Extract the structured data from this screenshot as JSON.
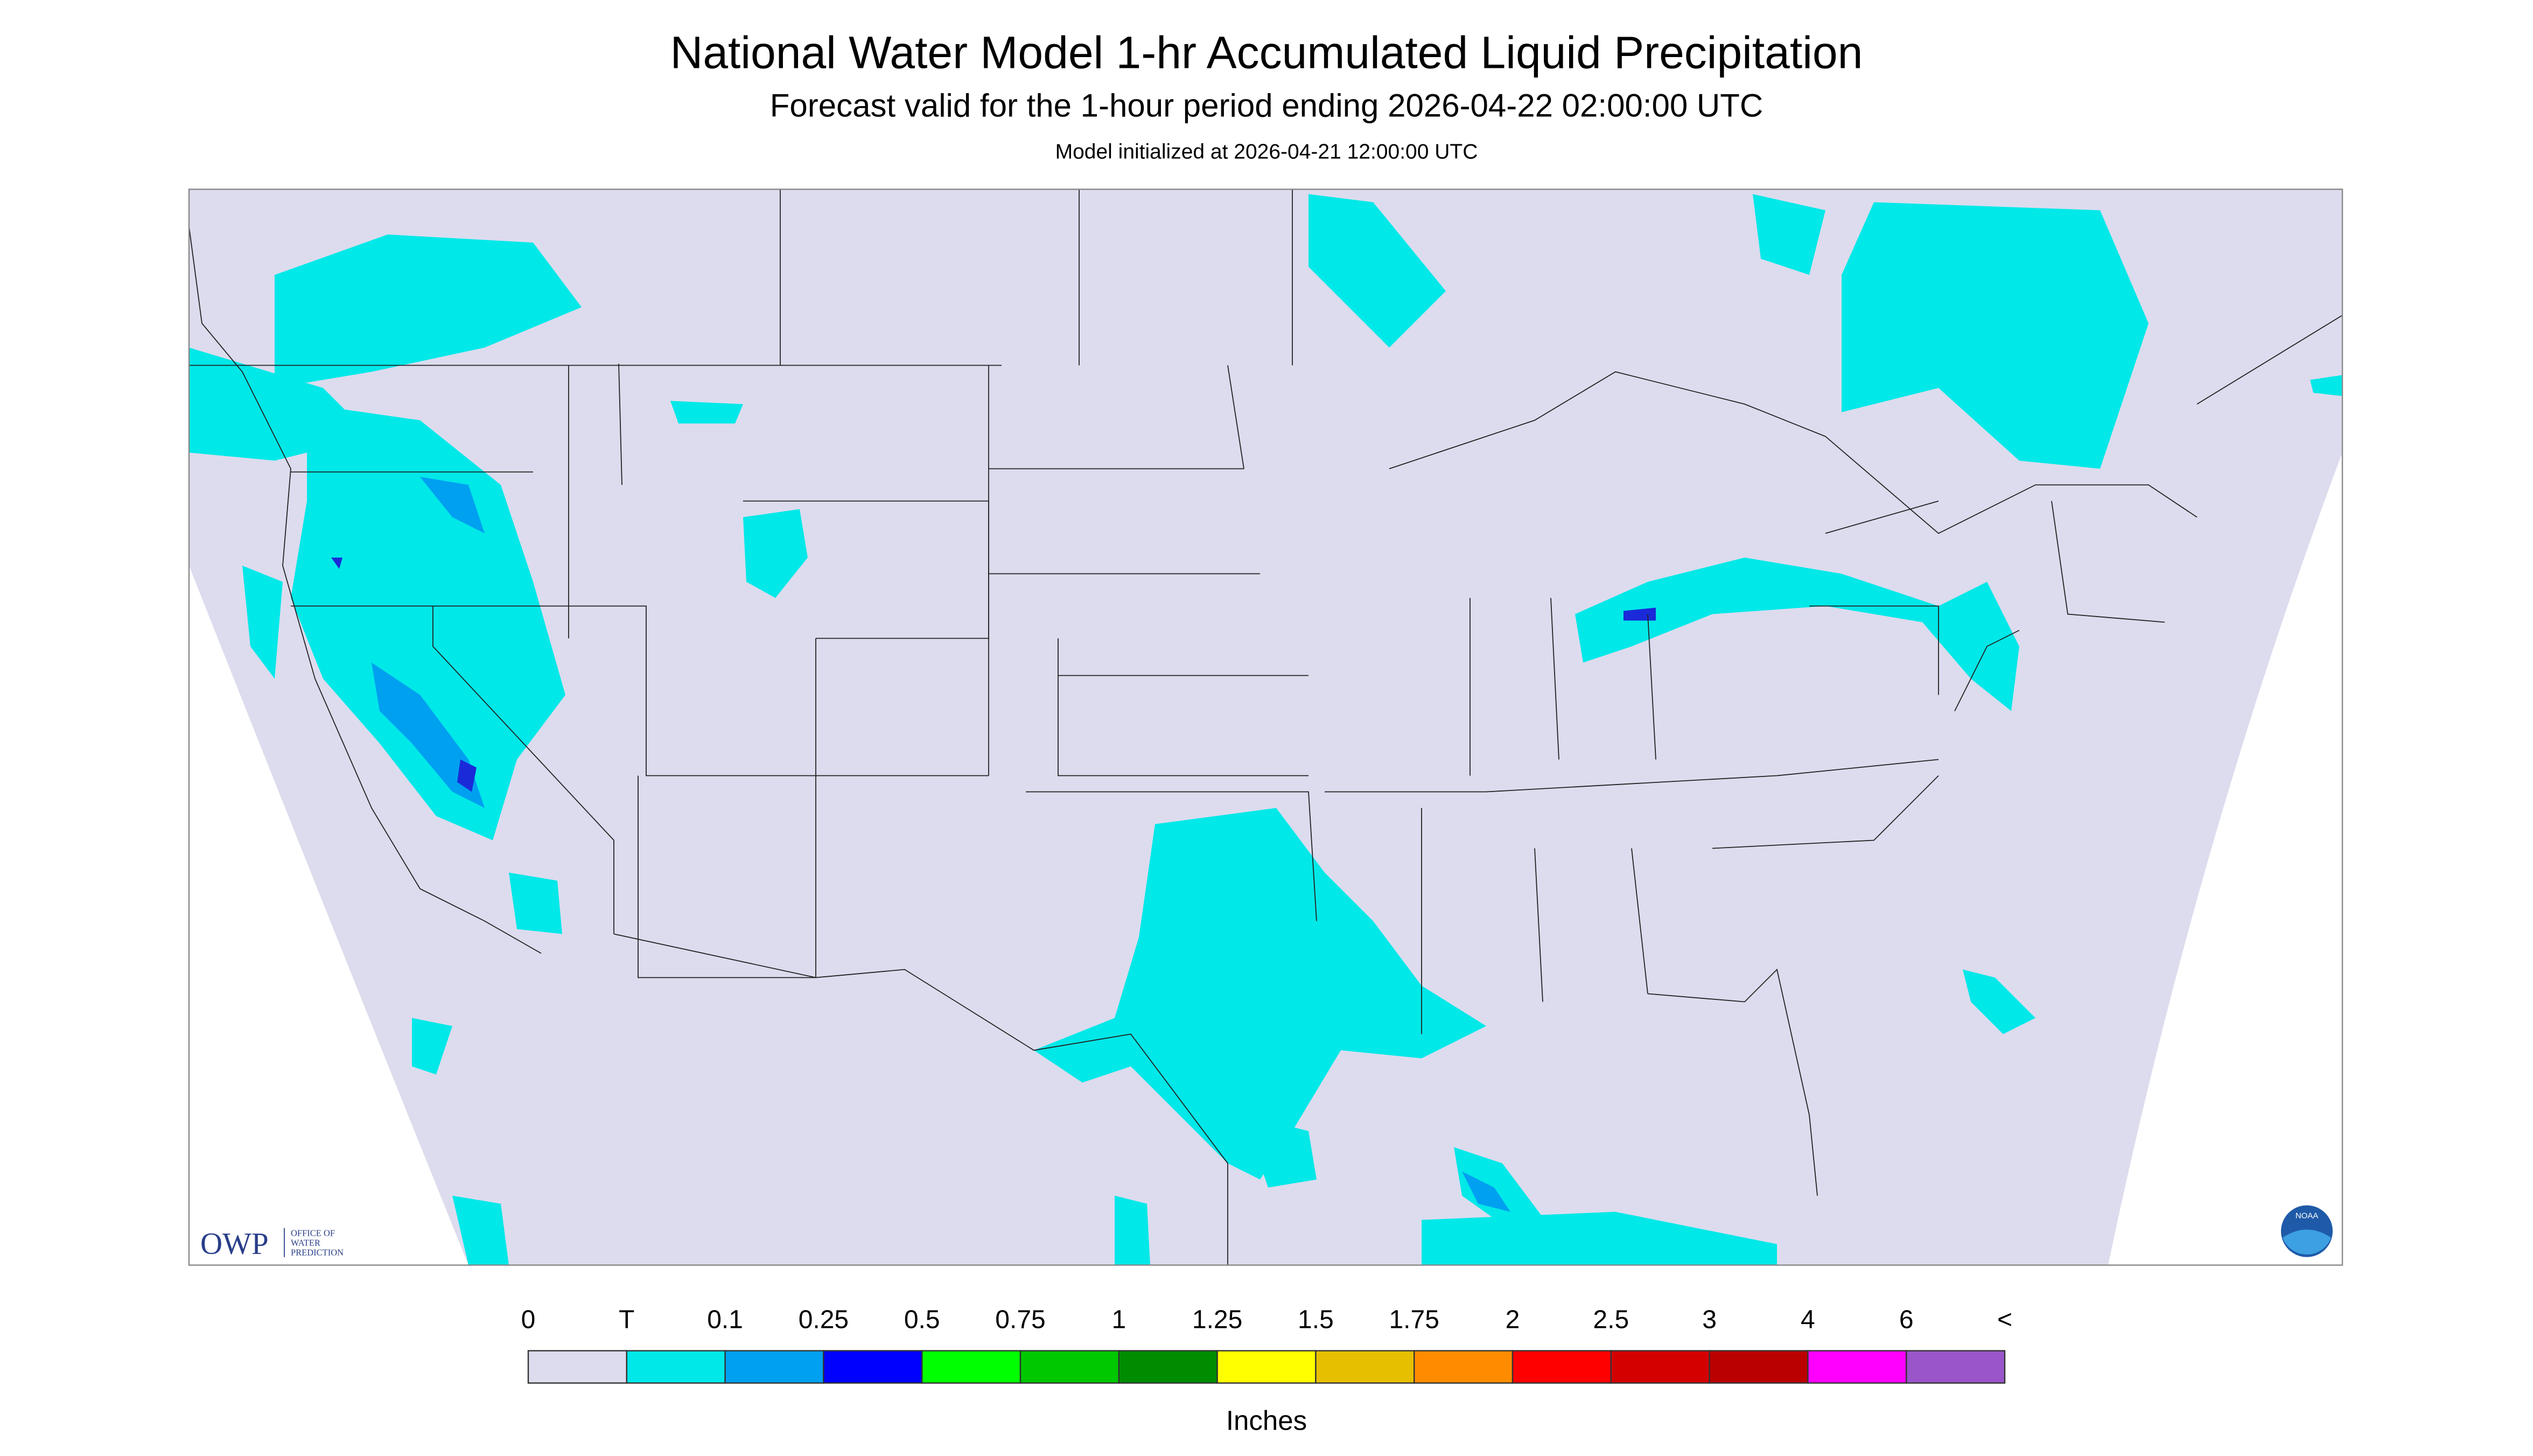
{
  "header": {
    "title": "National Water Model 1-hr Accumulated Liquid Precipitation",
    "subtitle": "Forecast valid for the 1-hour period ending 2026-04-22 02:00:00 UTC",
    "initialized": "Model initialized at 2026-04-21 12:00:00 UTC"
  },
  "legend": {
    "labels": [
      "0",
      "T",
      "0.1",
      "0.25",
      "0.5",
      "0.75",
      "1",
      "1.25",
      "1.5",
      "1.75",
      "2",
      "2.5",
      "3",
      "4",
      "6",
      "<"
    ],
    "colors": [
      "#dcdcee",
      "#00e8e8",
      "#00a0f0",
      "#0000ff",
      "#00ff00",
      "#00c800",
      "#008c00",
      "#ffff00",
      "#e6c000",
      "#ff8c00",
      "#ff0000",
      "#d40000",
      "#bb0000",
      "#ff00ff",
      "#9955c9"
    ],
    "unit": "Inches"
  },
  "logos": {
    "owp": "OWP",
    "owp_name": [
      "OFFICE OF",
      "WATER",
      "PREDICTION"
    ],
    "noaa": "NOAA"
  }
}
